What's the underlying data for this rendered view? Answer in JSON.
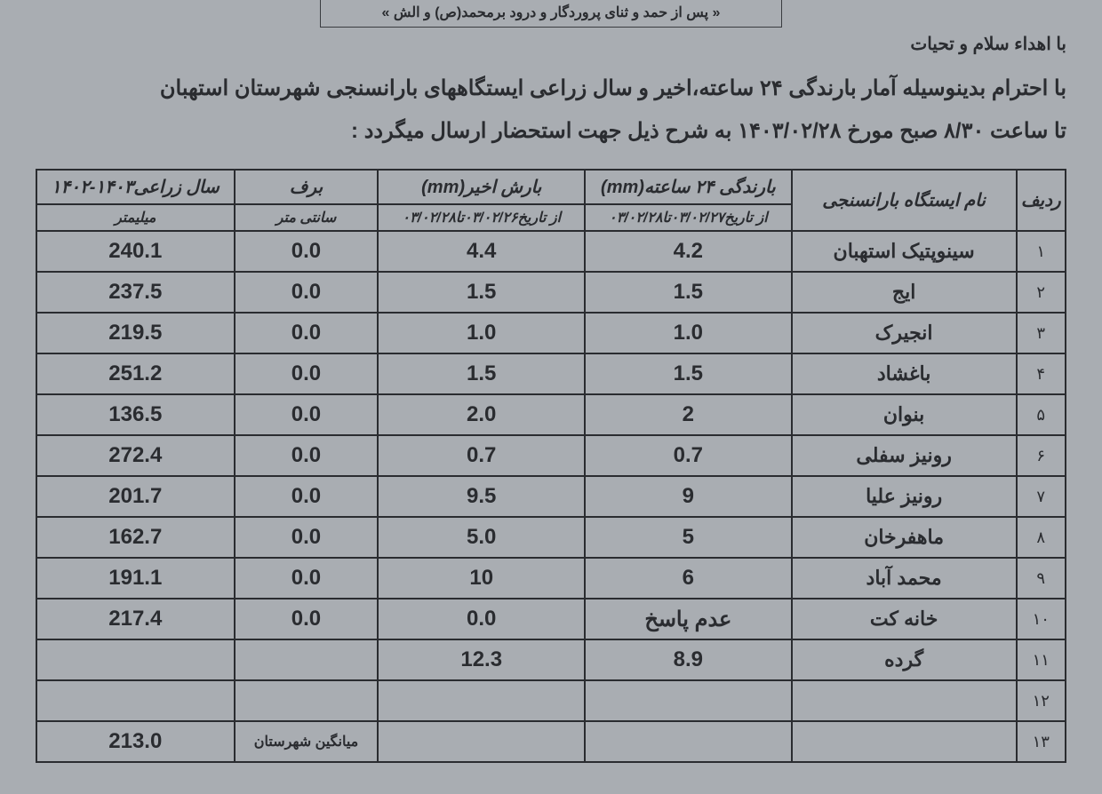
{
  "header_box": "« پس از حمد و ثنای پروردگار و درود برمحمد(ص) و الش »",
  "greeting": "با اهداء سلام و تحیات",
  "intro_line1": "با احترام بدینوسیله آمار بارندگی ۲۴ ساعته،اخیر و سال زراعی ایستگاههای بارانسنجی شهرستان استهبان",
  "intro_line2": "تا ساعت ۸/۳۰ صبح مورخ ۱۴۰۳/۰۲/۲۸ به شرح ذیل جهت استحضار ارسال میگردد :",
  "table": {
    "columns": {
      "idx": "ردیف",
      "name": "نام ایستگاه بارانسنجی",
      "rain24": "بارندگی ۲۴ ساعته(mm)",
      "rain24_sub": "از تاریخ۰۳/۰۲/۲۷تا۰۳/۰۲/۲۸",
      "recent": "بارش اخیر(mm)",
      "recent_sub": "از تاریخ۰۳/۰۲/۲۶تا۰۳/۰۲/۲۸",
      "snow": "برف",
      "snow_sub": "سانتی متر",
      "year": "سال زراعی۱۴۰۳-۱۴۰۲",
      "year_sub": "میلیمتر"
    },
    "rows": [
      {
        "idx": "۱",
        "name": "سینوپتیک استهبان",
        "r24": "4.2",
        "rec": "4.4",
        "snow": "0.0",
        "year": "240.1"
      },
      {
        "idx": "۲",
        "name": "ایج",
        "r24": "1.5",
        "rec": "1.5",
        "snow": "0.0",
        "year": "237.5"
      },
      {
        "idx": "۳",
        "name": "انجیرک",
        "r24": "1.0",
        "rec": "1.0",
        "snow": "0.0",
        "year": "219.5"
      },
      {
        "idx": "۴",
        "name": "باغشاد",
        "r24": "1.5",
        "rec": "1.5",
        "snow": "0.0",
        "year": "251.2"
      },
      {
        "idx": "۵",
        "name": "بنوان",
        "r24": "2",
        "rec": "2.0",
        "snow": "0.0",
        "year": "136.5"
      },
      {
        "idx": "۶",
        "name": "رونیز سفلی",
        "r24": "0.7",
        "rec": "0.7",
        "snow": "0.0",
        "year": "272.4"
      },
      {
        "idx": "۷",
        "name": "رونیز علیا",
        "r24": "9",
        "rec": "9.5",
        "snow": "0.0",
        "year": "201.7"
      },
      {
        "idx": "۸",
        "name": "ماهفرخان",
        "r24": "5",
        "rec": "5.0",
        "snow": "0.0",
        "year": "162.7"
      },
      {
        "idx": "۹",
        "name": "محمد آباد",
        "r24": "6",
        "rec": "10",
        "snow": "0.0",
        "year": "191.1"
      },
      {
        "idx": "۱۰",
        "name": "خانه کت",
        "r24": "عدم پاسخ",
        "rec": "0.0",
        "snow": "0.0",
        "year": "217.4"
      },
      {
        "idx": "۱۱",
        "name": "گرده",
        "r24": "8.9",
        "rec": "12.3",
        "snow": "",
        "year": ""
      },
      {
        "idx": "۱۲",
        "name": "",
        "r24": "",
        "rec": "",
        "snow": "",
        "year": ""
      },
      {
        "idx": "۱۳",
        "name": "",
        "r24": "",
        "rec": "",
        "snow": "میانگین شهرستان",
        "year": "213.0",
        "snow_small": true
      }
    ]
  }
}
